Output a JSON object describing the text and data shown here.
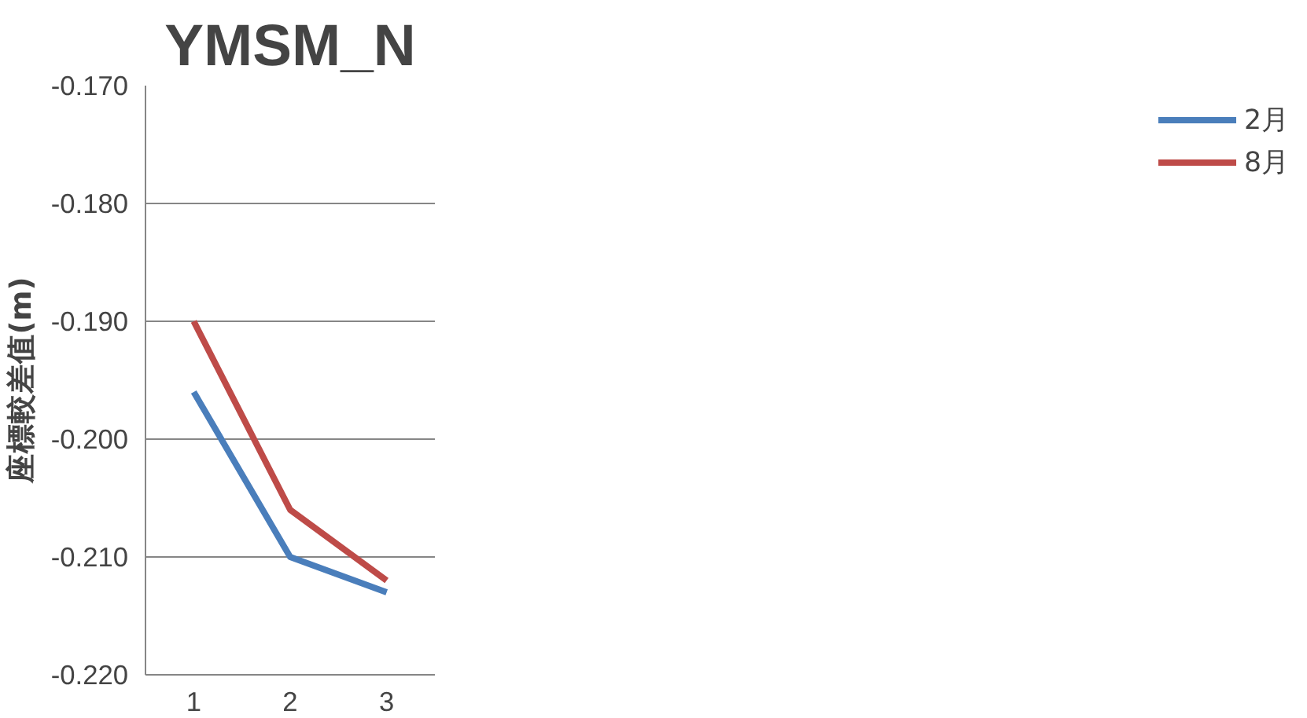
{
  "chart_data": {
    "type": "line",
    "title": "YMSM_N",
    "ylabel": "座標較差值(m)",
    "categories": [
      "1",
      "2",
      "3"
    ],
    "series": [
      {
        "name": "2月",
        "color": "#4a7ebb",
        "values": [
          -0.196,
          -0.21,
          -0.213
        ]
      },
      {
        "name": "8月",
        "color": "#be4b48",
        "values": [
          -0.19,
          -0.206,
          -0.212
        ]
      }
    ],
    "ylim": [
      -0.22,
      -0.17
    ],
    "yticks": [
      {
        "value": -0.22,
        "label": "-0.220"
      },
      {
        "value": -0.21,
        "label": "-0.210"
      },
      {
        "value": -0.2,
        "label": "-0.200"
      },
      {
        "value": -0.19,
        "label": "-0.190"
      },
      {
        "value": -0.18,
        "label": "-0.180"
      },
      {
        "value": -0.17,
        "label": "-0.170"
      }
    ],
    "grid": "y",
    "legend": "right",
    "marker": "none",
    "line_style": "solid"
  }
}
